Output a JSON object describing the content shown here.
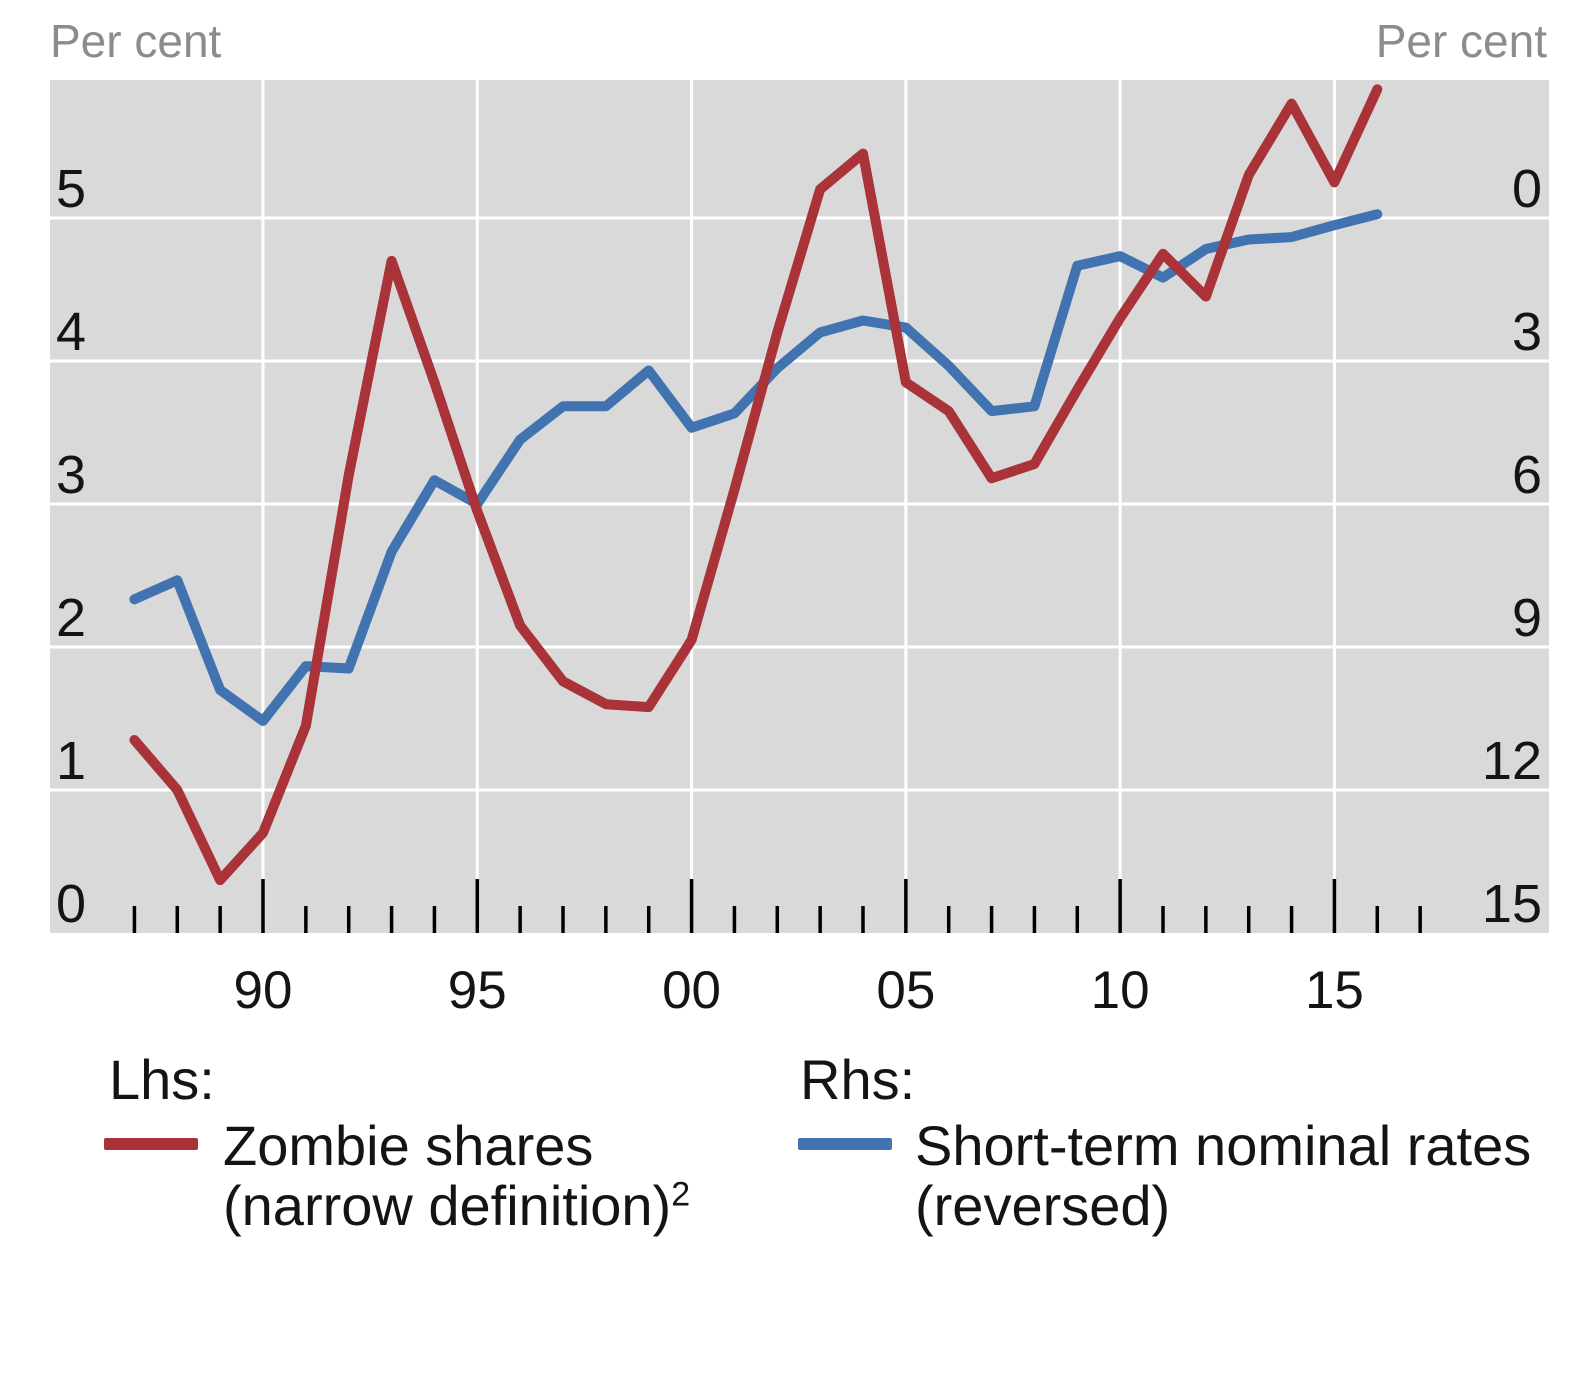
{
  "axes": {
    "left_title": "Per cent",
    "right_title": "Per cent"
  },
  "legend": {
    "lhs": {
      "title": "Lhs:",
      "line1": "Zombie shares",
      "line2": "(narrow definition)",
      "superscript": "2"
    },
    "rhs": {
      "title": "Rhs:",
      "line1": "Short-term nominal rates",
      "line2": "(reversed)"
    }
  },
  "chart_data": {
    "type": "line",
    "title": "",
    "x": [
      1987,
      1988,
      1989,
      1990,
      1991,
      1992,
      1993,
      1994,
      1995,
      1996,
      1997,
      1998,
      1999,
      2000,
      2001,
      2002,
      2003,
      2004,
      2005,
      2006,
      2007,
      2008,
      2009,
      2010,
      2011,
      2012,
      2013,
      2014,
      2015,
      2016
    ],
    "series": [
      {
        "name": "Short-term nominal rates (reversed)",
        "axis": "right",
        "color": "#4173b0",
        "values": [
          8.0,
          7.6,
          9.9,
          10.55,
          9.4,
          9.45,
          7.0,
          5.5,
          6.0,
          4.65,
          3.95,
          3.95,
          3.2,
          4.4,
          4.1,
          3.15,
          2.4,
          2.15,
          2.3,
          3.1,
          4.05,
          3.95,
          1.0,
          0.8,
          1.25,
          0.65,
          0.45,
          0.4,
          0.15,
          -0.08
        ]
      },
      {
        "name": "Zombie shares (narrow definition)",
        "axis": "left",
        "color": "#a93338",
        "values": [
          1.35,
          1.0,
          0.37,
          0.7,
          1.45,
          3.2,
          4.7,
          3.85,
          2.95,
          2.15,
          1.76,
          1.6,
          1.58,
          2.05,
          3.1,
          4.2,
          5.2,
          5.45,
          3.85,
          3.65,
          3.18,
          3.28,
          3.8,
          4.3,
          4.75,
          4.45,
          5.3,
          5.8,
          5.25,
          5.9
        ]
      }
    ],
    "left_axis": {
      "title": "Per cent",
      "ticks": [
        0,
        1,
        2,
        3,
        4,
        5
      ],
      "min": 0,
      "max": 5.96
    },
    "right_axis": {
      "title": "Per cent",
      "ticks": [
        0,
        3,
        6,
        9,
        12,
        15
      ],
      "min": 0,
      "max": 15,
      "reversed": true
    },
    "x_axis": {
      "minor_tick_years": [
        1987,
        1988,
        1989,
        1990,
        1991,
        1992,
        1993,
        1994,
        1995,
        1996,
        1997,
        1998,
        1999,
        2000,
        2001,
        2002,
        2003,
        2004,
        2005,
        2006,
        2007,
        2008,
        2009,
        2010,
        2011,
        2012,
        2013,
        2014,
        2015,
        2016,
        2017
      ],
      "major_tick_years": [
        1990,
        1995,
        2000,
        2005,
        2010,
        2015
      ],
      "major_tick_labels": [
        "90",
        "95",
        "00",
        "05",
        "10",
        "15"
      ]
    },
    "grid": {
      "h_values_left": [
        1,
        2,
        3,
        4,
        5
      ],
      "v_years": [
        1990,
        1995,
        2000,
        2005,
        2010,
        2015
      ],
      "panel_color": "#d9d9d9",
      "gridline_color": "#ffffff"
    },
    "legend_position": "bottom"
  }
}
